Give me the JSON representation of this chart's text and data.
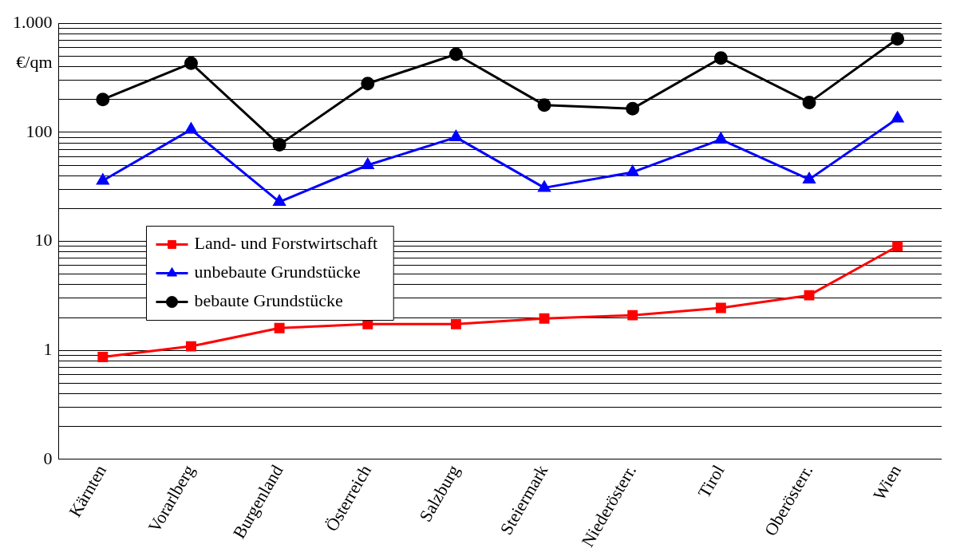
{
  "chart_data": {
    "type": "line",
    "ylabel": "€/qm",
    "log": "y",
    "grid": "y",
    "legend": "center left",
    "line_style": "solid",
    "categories": [
      "Kärnten",
      "Vorarlberg",
      "Burgenland",
      "Österreich",
      "Salzburg",
      "Steiermark",
      "Niederösterr.",
      "Tirol",
      "Oberösterr.",
      "Wien"
    ],
    "ylim": [
      0.1,
      1000
    ],
    "yticks": [
      {
        "value": 0.1,
        "label": "0"
      },
      {
        "value": 0.2,
        "label": null
      },
      {
        "value": 0.3,
        "label": null
      },
      {
        "value": 0.4,
        "label": null
      },
      {
        "value": 0.5,
        "label": null
      },
      {
        "value": 0.6,
        "label": null
      },
      {
        "value": 0.7,
        "label": null
      },
      {
        "value": 0.8,
        "label": null
      },
      {
        "value": 0.9,
        "label": null
      },
      1,
      {
        "value": 2,
        "label": null
      },
      {
        "value": 3,
        "label": null
      },
      {
        "value": 4,
        "label": null
      },
      {
        "value": 5,
        "label": null
      },
      {
        "value": 6,
        "label": null
      },
      {
        "value": 7,
        "label": null
      },
      {
        "value": 8,
        "label": null
      },
      {
        "value": 9,
        "label": null
      },
      10,
      {
        "value": 20,
        "label": null
      },
      {
        "value": 30,
        "label": null
      },
      {
        "value": 40,
        "label": null
      },
      {
        "value": 50,
        "label": null
      },
      {
        "value": 60,
        "label": null
      },
      {
        "value": 70,
        "label": null
      },
      {
        "value": 80,
        "label": null
      },
      {
        "value": 90,
        "label": null
      },
      100,
      {
        "value": 200,
        "label": null
      },
      {
        "value": 300,
        "label": null
      },
      {
        "value": 400,
        "label": null
      },
      {
        "value": 500,
        "label": null
      },
      {
        "value": 600,
        "label": null
      },
      {
        "value": 700,
        "label": null
      },
      {
        "value": 800,
        "label": null
      },
      {
        "value": 900,
        "label": null
      },
      {
        "value": 1000,
        "label": "1.000"
      }
    ],
    "series": [
      {
        "name": "Land- und Forstwirtschaft",
        "color": "#ff0000",
        "marker": "square",
        "values": [
          0.87,
          1.09,
          1.6,
          1.74,
          1.74,
          1.96,
          2.1,
          2.45,
          3.2,
          9
        ]
      },
      {
        "name": "unbebaute Grundstücke",
        "color": "#0000ff",
        "marker": "triangle",
        "values": [
          36,
          106,
          23,
          50,
          90,
          31,
          43,
          86,
          37,
          134
        ]
      },
      {
        "name": "bebaute Grundstücke",
        "color": "#000000",
        "marker": "circle",
        "values": [
          200,
          430,
          77,
          280,
          520,
          178,
          165,
          480,
          188,
          720
        ]
      }
    ]
  }
}
